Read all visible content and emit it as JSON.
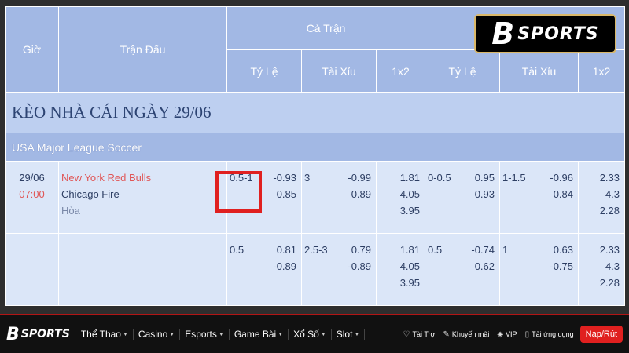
{
  "table": {
    "headers": {
      "time": "Giờ",
      "match": "Trận Đấu",
      "full_match": "Cả Trận",
      "handicap": "Tỷ Lệ",
      "over_under": "Tài Xỉu",
      "one_x_two": "1x2"
    },
    "title": "KÈO NHÀ CÁI NGÀY 29/06",
    "league": "USA Major League Soccer",
    "rows": [
      {
        "date": "29/06",
        "time": "07:00",
        "home": "New York Red Bulls",
        "away": "Chicago Fire",
        "draw": "Hòa",
        "ft_hdp_line": "0.5-1",
        "ft_hdp_home": "-0.93",
        "ft_hdp_away": "0.85",
        "ft_ou_line": "3",
        "ft_ou_over": "-0.99",
        "ft_ou_under": "0.89",
        "ft_1": "1.81",
        "ft_2": "4.05",
        "ft_x": "3.95",
        "h1_hdp_line": "0-0.5",
        "h1_hdp_home": "0.95",
        "h1_hdp_away": "0.93",
        "h1_ou_line": "1-1.5",
        "h1_ou_over": "-0.96",
        "h1_ou_under": "0.84",
        "h1_1": "2.33",
        "h1_2": "4.3",
        "h1_x": "2.28"
      },
      {
        "ft_hdp_line": "0.5",
        "ft_hdp_home": "0.81",
        "ft_hdp_away": "-0.89",
        "ft_ou_line": "2.5-3",
        "ft_ou_over": "0.79",
        "ft_ou_under": "-0.89",
        "ft_1": "1.81",
        "ft_2": "4.05",
        "ft_x": "3.95",
        "h1_hdp_line": "0.5",
        "h1_hdp_home": "-0.74",
        "h1_hdp_away": "0.62",
        "h1_ou_line": "1",
        "h1_ou_over": "0.63",
        "h1_ou_under": "-0.75",
        "h1_1": "2.33",
        "h1_2": "4.3",
        "h1_x": "2.28"
      }
    ]
  },
  "brand": {
    "mark": "B",
    "text": "SPORTS"
  },
  "nav": {
    "items": [
      "Thể Thao",
      "Casino",
      "Esports",
      "Game Bài",
      "Xổ Số",
      "Slot"
    ],
    "utils": [
      {
        "icon": "sponsor-icon",
        "glyph": "♡",
        "label": "Tài Trợ"
      },
      {
        "icon": "promo-icon",
        "glyph": "✎",
        "label": "Khuyến mãi"
      },
      {
        "icon": "vip-icon",
        "glyph": "◈",
        "label": "VIP"
      },
      {
        "icon": "app-icon",
        "glyph": "▯",
        "label": "Tải ứng dụng"
      }
    ],
    "cta": "Nạp/Rút"
  },
  "colors": {
    "header": "#a2b8e4",
    "row": "#dbe6f8",
    "accent": "#e02020",
    "home_team": "#e05555"
  }
}
